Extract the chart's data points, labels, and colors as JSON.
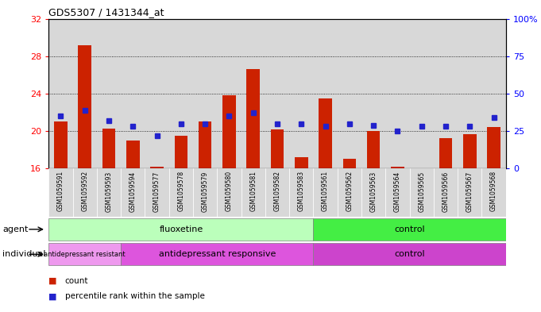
{
  "title": "GDS5307 / 1431344_at",
  "samples": [
    "GSM1059591",
    "GSM1059592",
    "GSM1059593",
    "GSM1059594",
    "GSM1059577",
    "GSM1059578",
    "GSM1059579",
    "GSM1059580",
    "GSM1059581",
    "GSM1059582",
    "GSM1059583",
    "GSM1059561",
    "GSM1059562",
    "GSM1059563",
    "GSM1059564",
    "GSM1059565",
    "GSM1059566",
    "GSM1059567",
    "GSM1059568"
  ],
  "counts": [
    21.0,
    29.2,
    20.3,
    19.0,
    16.2,
    19.5,
    21.0,
    23.8,
    26.6,
    20.2,
    17.2,
    23.5,
    17.0,
    20.0,
    16.2,
    16.0,
    19.2,
    19.7,
    20.4
  ],
  "percentiles": [
    35,
    39,
    32,
    28,
    22,
    30,
    30,
    35,
    37,
    30,
    30,
    28,
    30,
    29,
    25,
    28,
    28,
    28,
    34
  ],
  "ylim_left": [
    16,
    32
  ],
  "ylim_right": [
    0,
    100
  ],
  "yticks_left": [
    16,
    20,
    24,
    28,
    32
  ],
  "yticks_right": [
    0,
    25,
    50,
    75,
    100
  ],
  "ytick_labels_right": [
    "0",
    "25",
    "50",
    "75",
    "100%"
  ],
  "bar_color": "#cc2200",
  "dot_color": "#2222cc",
  "agent_groups": [
    {
      "label": "fluoxetine",
      "start": 0,
      "end": 11,
      "color": "#bbffbb"
    },
    {
      "label": "control",
      "start": 11,
      "end": 19,
      "color": "#44ee44"
    }
  ],
  "individual_groups": [
    {
      "label": "antidepressant resistant",
      "start": 0,
      "end": 3,
      "color": "#ee99ee"
    },
    {
      "label": "antidepressant responsive",
      "start": 3,
      "end": 11,
      "color": "#dd55dd"
    },
    {
      "label": "control",
      "start": 11,
      "end": 19,
      "color": "#cc44cc"
    }
  ],
  "bar_bottom": 16,
  "bar_width": 0.55,
  "xtick_bg_color": "#d8d8d8",
  "legend_count_color": "#cc2200",
  "legend_dot_color": "#2222cc"
}
